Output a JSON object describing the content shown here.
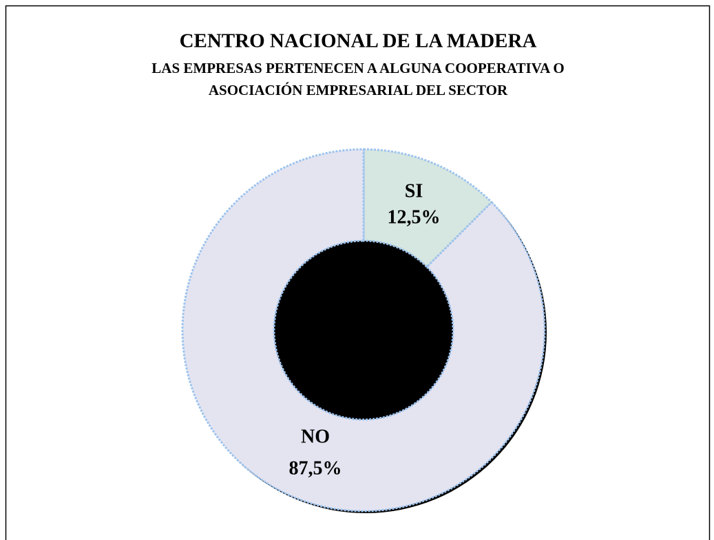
{
  "chart_data": {
    "type": "donut",
    "title": "CENTRO NACIONAL DE LA MADERA",
    "subtitle": [
      "LAS EMPRESAS PERTENECEN A ALGUNA COOPERATIVA O",
      "ASOCIACIÓN EMPRESARIAL DEL SECTOR"
    ],
    "categories": [
      "SI",
      "NO"
    ],
    "values": [
      12.5,
      87.5
    ],
    "value_labels": [
      "12,5%",
      "87,5%"
    ],
    "colors": [
      "#d6e6e0",
      "#e4e4f1"
    ]
  }
}
